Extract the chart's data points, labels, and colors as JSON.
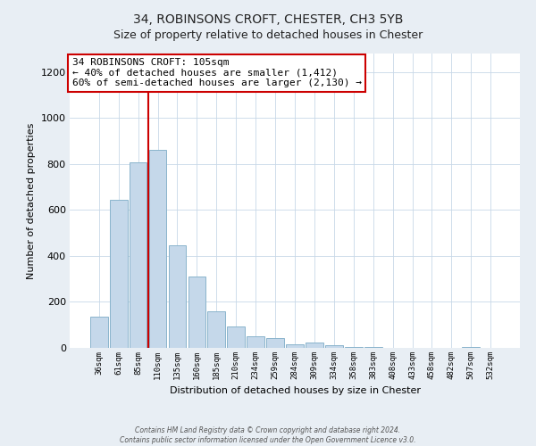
{
  "title": "34, ROBINSONS CROFT, CHESTER, CH3 5YB",
  "subtitle": "Size of property relative to detached houses in Chester",
  "xlabel": "Distribution of detached houses by size in Chester",
  "ylabel": "Number of detached properties",
  "bar_labels": [
    "36sqm",
    "61sqm",
    "85sqm",
    "110sqm",
    "135sqm",
    "160sqm",
    "185sqm",
    "210sqm",
    "234sqm",
    "259sqm",
    "284sqm",
    "309sqm",
    "334sqm",
    "358sqm",
    "383sqm",
    "408sqm",
    "433sqm",
    "458sqm",
    "482sqm",
    "507sqm",
    "532sqm"
  ],
  "bar_values": [
    135,
    645,
    805,
    860,
    445,
    310,
    158,
    95,
    52,
    43,
    15,
    22,
    10,
    5,
    2,
    0,
    0,
    0,
    0,
    5,
    0
  ],
  "bar_color": "#c5d8ea",
  "bar_edge_color": "#8ab4cc",
  "vline_color": "#cc0000",
  "annotation_title": "34 ROBINSONS CROFT: 105sqm",
  "annotation_line1": "← 40% of detached houses are smaller (1,412)",
  "annotation_line2": "60% of semi-detached houses are larger (2,130) →",
  "annotation_box_facecolor": "#ffffff",
  "annotation_box_edgecolor": "#cc0000",
  "ylim": [
    0,
    1280
  ],
  "yticks": [
    0,
    200,
    400,
    600,
    800,
    1000,
    1200
  ],
  "footer_line1": "Contains HM Land Registry data © Crown copyright and database right 2024.",
  "footer_line2": "Contains public sector information licensed under the Open Government Licence v3.0.",
  "background_color": "#e8eef4",
  "plot_bg_color": "#ffffff",
  "grid_color": "#c8d8e8"
}
